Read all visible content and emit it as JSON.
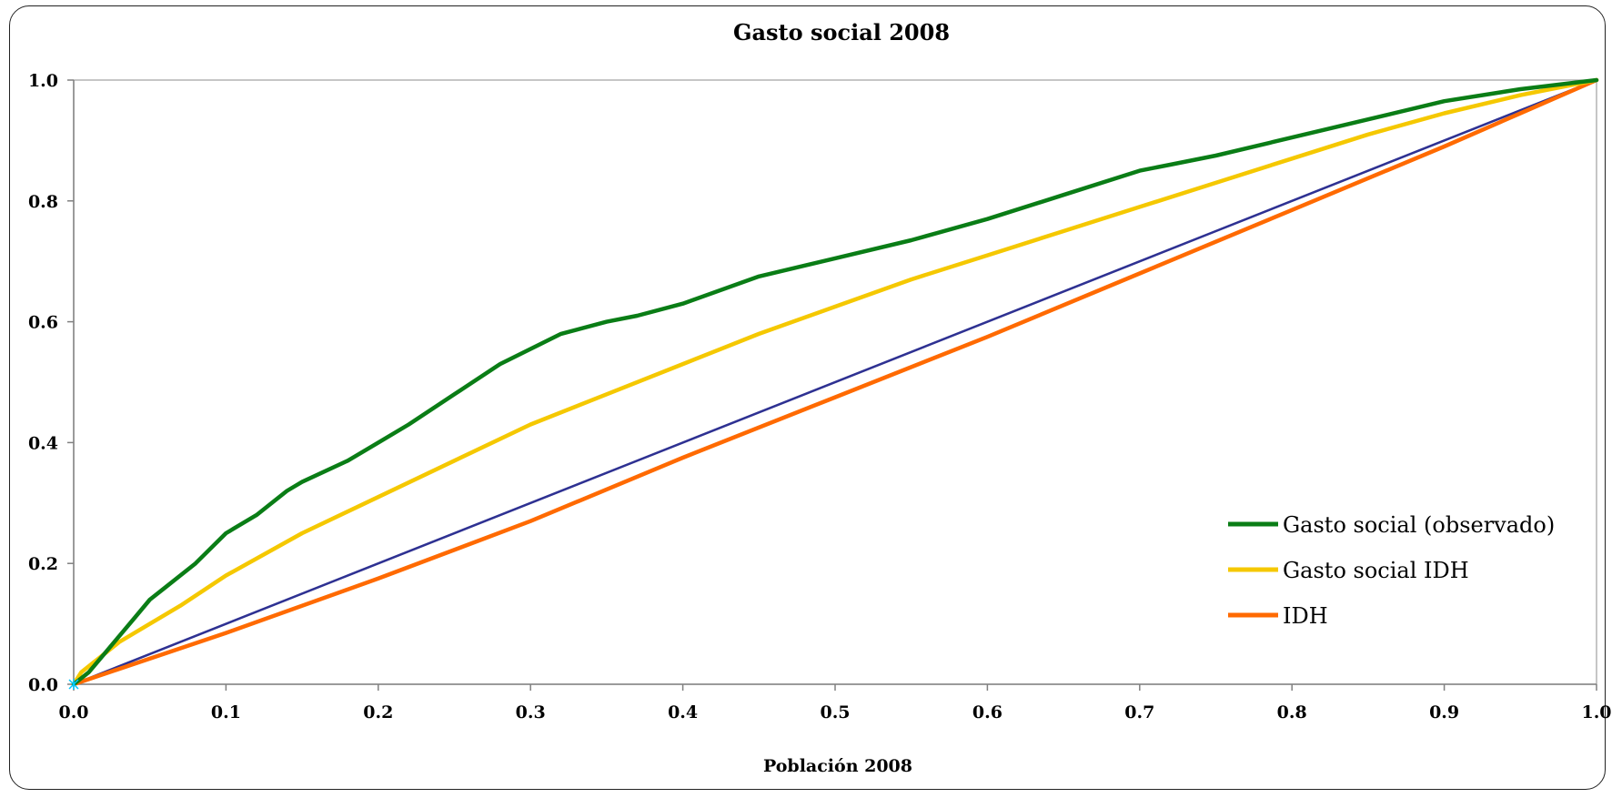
{
  "chart_data": {
    "type": "line",
    "title": "Gasto social 2008",
    "xlabel": "Población 2008",
    "ylabel": "",
    "xlim": [
      0.0,
      1.0
    ],
    "ylim": [
      0.0,
      1.0
    ],
    "x_ticks": [
      "0.0",
      "0.1",
      "0.2",
      "0.3",
      "0.4",
      "0.5",
      "0.6",
      "0.7",
      "0.8",
      "0.9",
      "1.0"
    ],
    "y_ticks": [
      "0.0",
      "0.2",
      "0.4",
      "0.6",
      "0.8",
      "1.0"
    ],
    "grid": false,
    "legend_position": "bottom-right",
    "series": [
      {
        "name": "Gasto social (observado)",
        "color": "#0a7d16",
        "x": [
          0.0,
          0.01,
          0.02,
          0.03,
          0.04,
          0.05,
          0.06,
          0.08,
          0.1,
          0.12,
          0.14,
          0.15,
          0.18,
          0.2,
          0.22,
          0.25,
          0.28,
          0.3,
          0.32,
          0.35,
          0.37,
          0.4,
          0.45,
          0.5,
          0.55,
          0.6,
          0.65,
          0.7,
          0.72,
          0.75,
          0.8,
          0.85,
          0.9,
          0.95,
          1.0
        ],
        "y": [
          0.0,
          0.02,
          0.05,
          0.08,
          0.11,
          0.14,
          0.16,
          0.2,
          0.25,
          0.28,
          0.32,
          0.335,
          0.37,
          0.4,
          0.43,
          0.48,
          0.53,
          0.555,
          0.58,
          0.6,
          0.61,
          0.63,
          0.675,
          0.705,
          0.735,
          0.77,
          0.81,
          0.85,
          0.86,
          0.875,
          0.905,
          0.935,
          0.965,
          0.985,
          1.0
        ]
      },
      {
        "name": "Gasto social IDH",
        "color": "#f5c800",
        "x": [
          0.0,
          0.005,
          0.01,
          0.02,
          0.03,
          0.05,
          0.07,
          0.1,
          0.15,
          0.2,
          0.25,
          0.3,
          0.35,
          0.4,
          0.45,
          0.5,
          0.55,
          0.6,
          0.65,
          0.7,
          0.75,
          0.8,
          0.85,
          0.9,
          0.95,
          1.0
        ],
        "y": [
          0.0,
          0.02,
          0.03,
          0.05,
          0.07,
          0.1,
          0.13,
          0.18,
          0.25,
          0.31,
          0.37,
          0.43,
          0.48,
          0.53,
          0.58,
          0.625,
          0.67,
          0.71,
          0.75,
          0.79,
          0.83,
          0.87,
          0.91,
          0.945,
          0.975,
          1.0
        ]
      },
      {
        "name": "IDH",
        "color": "#ff6a00",
        "x": [
          0.0,
          0.1,
          0.2,
          0.3,
          0.4,
          0.5,
          0.6,
          0.7,
          0.8,
          0.9,
          1.0
        ],
        "y": [
          0.0,
          0.085,
          0.175,
          0.27,
          0.375,
          0.475,
          0.575,
          0.68,
          0.785,
          0.89,
          1.0
        ]
      },
      {
        "name": "",
        "color": "#2e3192",
        "x": [
          0.0,
          1.0
        ],
        "y": [
          0.0,
          1.0
        ]
      }
    ]
  }
}
